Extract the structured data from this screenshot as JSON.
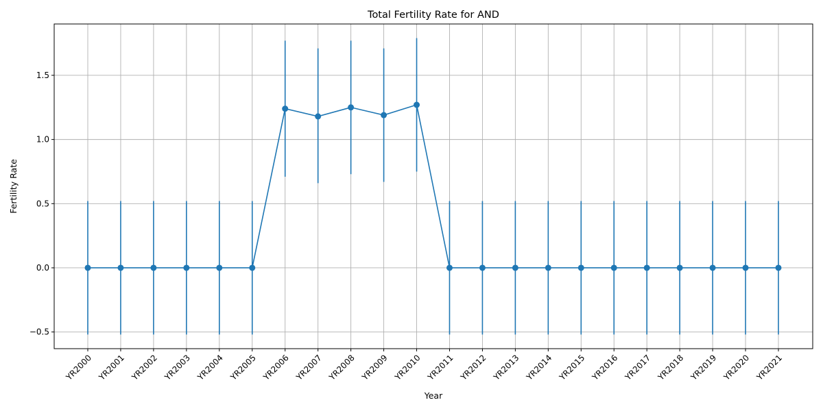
{
  "chart_data": {
    "type": "line",
    "title": "Total Fertility Rate for AND",
    "xlabel": "Year",
    "ylabel": "Fertility Rate",
    "categories": [
      "YR2000",
      "YR2001",
      "YR2002",
      "YR2003",
      "YR2004",
      "YR2005",
      "YR2006",
      "YR2007",
      "YR2008",
      "YR2009",
      "YR2010",
      "YR2011",
      "YR2012",
      "YR2013",
      "YR2014",
      "YR2015",
      "YR2016",
      "YR2017",
      "YR2018",
      "YR2019",
      "YR2020",
      "YR2021"
    ],
    "series": [
      {
        "values": [
          0,
          0,
          0,
          0,
          0,
          0,
          1.24,
          1.18,
          1.25,
          1.19,
          1.27,
          0,
          0,
          0,
          0,
          0,
          0,
          0,
          0,
          0,
          0,
          0
        ],
        "error_low": [
          -0.52,
          -0.52,
          -0.52,
          -0.52,
          -0.52,
          -0.52,
          0.71,
          0.66,
          0.73,
          0.67,
          0.75,
          -0.52,
          -0.52,
          -0.52,
          -0.52,
          -0.52,
          -0.52,
          -0.52,
          -0.52,
          -0.52,
          -0.52,
          -0.52
        ],
        "error_high": [
          0.52,
          0.52,
          0.52,
          0.52,
          0.52,
          0.52,
          1.77,
          1.71,
          1.77,
          1.71,
          1.79,
          0.52,
          0.52,
          0.52,
          0.52,
          0.52,
          0.52,
          0.52,
          0.52,
          0.52,
          0.52,
          0.52
        ],
        "color": "#1f77b4"
      }
    ],
    "yticks": [
      -0.5,
      0.0,
      0.5,
      1.0,
      1.5
    ],
    "ytick_labels": [
      "−0.5",
      "0.0",
      "0.5",
      "1.0",
      "1.5"
    ],
    "ylim": [
      -0.63,
      1.9
    ],
    "grid": true,
    "legend": "none"
  }
}
